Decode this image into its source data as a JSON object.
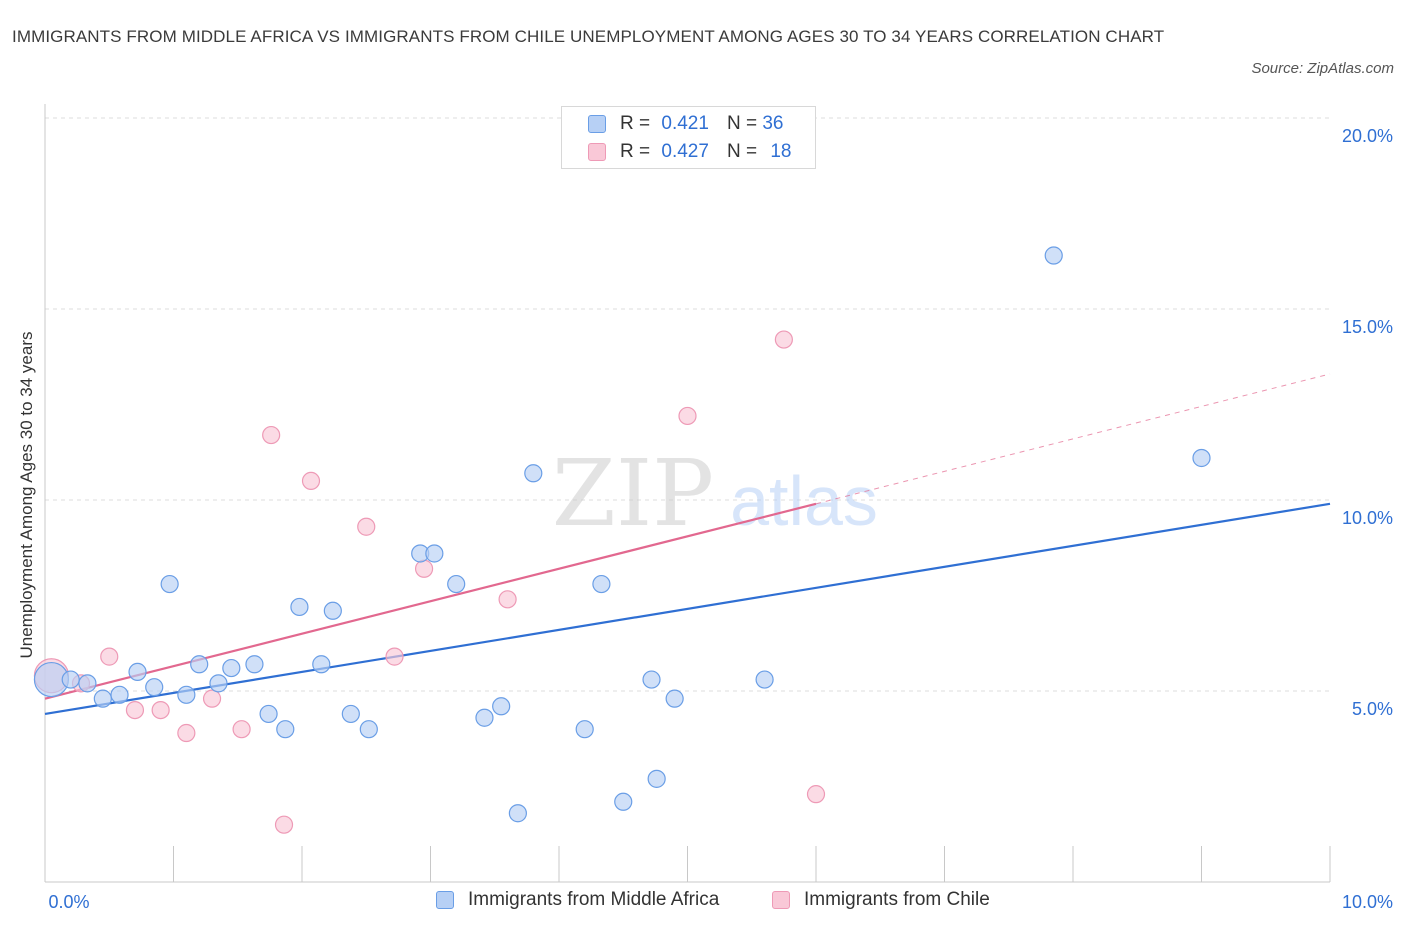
{
  "title": "IMMIGRANTS FROM MIDDLE AFRICA VS IMMIGRANTS FROM CHILE UNEMPLOYMENT AMONG AGES 30 TO 34 YEARS CORRELATION CHART",
  "source": "Source: ZipAtlas.com",
  "watermark": {
    "zip": "ZIP",
    "atlas": "atlas"
  },
  "legend": {
    "rows": [
      {
        "r_label": "R =",
        "r_value": "0.421",
        "n_label": "N =",
        "n_value": "36"
      },
      {
        "r_label": "R =",
        "r_value": "0.427",
        "n_label": "N =",
        "n_value": "18"
      }
    ]
  },
  "colors": {
    "blue_fill": "#b7d0f5",
    "blue_stroke": "#6a9ee6",
    "blue_line": "#2f6fd3",
    "pink_fill": "#f9c8d7",
    "pink_stroke": "#ee9ab6",
    "pink_line": "#e2688f",
    "axis_text": "#2f6fd3",
    "grid": "#dcdcdc"
  },
  "chart_data": {
    "type": "scatter",
    "title": "IMMIGRANTS FROM MIDDLE AFRICA VS IMMIGRANTS FROM CHILE UNEMPLOYMENT AMONG AGES 30 TO 34 YEARS CORRELATION CHART",
    "xlabel": "",
    "ylabel": "Unemployment Among Ages 30 to 34 years",
    "xlim": [
      0,
      10
    ],
    "ylim": [
      0,
      20
    ],
    "x_tick_labels": {
      "min": "0.0%",
      "max": "10.0%"
    },
    "y_ticks": [
      {
        "value": 5,
        "label": "5.0%"
      },
      {
        "value": 10,
        "label": "10.0%"
      },
      {
        "value": 15,
        "label": "15.0%"
      },
      {
        "value": 20,
        "label": "20.0%"
      }
    ],
    "series": [
      {
        "name": "Immigrants from Middle Africa",
        "r": 0.421,
        "n": 36,
        "trend": {
          "x0": 0,
          "y0": 4.4,
          "x1": 10,
          "y1": 9.9
        },
        "points": [
          {
            "x": 0.05,
            "y": 5.3,
            "big": true
          },
          {
            "x": 0.2,
            "y": 5.3
          },
          {
            "x": 0.33,
            "y": 5.2
          },
          {
            "x": 0.45,
            "y": 4.8
          },
          {
            "x": 0.58,
            "y": 4.9
          },
          {
            "x": 0.72,
            "y": 5.5
          },
          {
            "x": 0.85,
            "y": 5.1
          },
          {
            "x": 0.97,
            "y": 7.8
          },
          {
            "x": 1.1,
            "y": 4.9
          },
          {
            "x": 1.2,
            "y": 5.7
          },
          {
            "x": 1.35,
            "y": 5.2
          },
          {
            "x": 1.45,
            "y": 5.6
          },
          {
            "x": 1.63,
            "y": 5.7
          },
          {
            "x": 1.74,
            "y": 4.4
          },
          {
            "x": 1.87,
            "y": 4.0
          },
          {
            "x": 1.98,
            "y": 7.2
          },
          {
            "x": 2.15,
            "y": 5.7
          },
          {
            "x": 2.24,
            "y": 7.1
          },
          {
            "x": 2.38,
            "y": 4.4
          },
          {
            "x": 2.52,
            "y": 4.0
          },
          {
            "x": 2.92,
            "y": 8.6
          },
          {
            "x": 3.03,
            "y": 8.6
          },
          {
            "x": 3.2,
            "y": 7.8
          },
          {
            "x": 3.42,
            "y": 4.3
          },
          {
            "x": 3.55,
            "y": 4.6
          },
          {
            "x": 3.68,
            "y": 1.8
          },
          {
            "x": 3.8,
            "y": 10.7
          },
          {
            "x": 4.2,
            "y": 4.0
          },
          {
            "x": 4.33,
            "y": 7.8
          },
          {
            "x": 4.5,
            "y": 2.1
          },
          {
            "x": 4.72,
            "y": 5.3
          },
          {
            "x": 4.76,
            "y": 2.7
          },
          {
            "x": 4.9,
            "y": 4.8
          },
          {
            "x": 5.6,
            "y": 5.3
          },
          {
            "x": 7.85,
            "y": 16.4
          },
          {
            "x": 9.0,
            "y": 11.1
          }
        ]
      },
      {
        "name": "Immigrants from Chile",
        "r": 0.427,
        "n": 18,
        "trend": {
          "x0": 0,
          "y0": 4.8,
          "x1": 6.0,
          "y1": 9.9
        },
        "trend_dashed": {
          "x0": 6.0,
          "y0": 9.9,
          "x1": 10,
          "y1": 13.3
        },
        "points": [
          {
            "x": 0.05,
            "y": 5.4,
            "big": true
          },
          {
            "x": 0.28,
            "y": 5.2
          },
          {
            "x": 0.5,
            "y": 5.9
          },
          {
            "x": 0.7,
            "y": 4.5
          },
          {
            "x": 0.9,
            "y": 4.5
          },
          {
            "x": 1.1,
            "y": 3.9
          },
          {
            "x": 1.3,
            "y": 4.8
          },
          {
            "x": 1.53,
            "y": 4.0
          },
          {
            "x": 1.76,
            "y": 11.7
          },
          {
            "x": 1.86,
            "y": 1.5
          },
          {
            "x": 2.07,
            "y": 10.5
          },
          {
            "x": 2.5,
            "y": 9.3
          },
          {
            "x": 2.72,
            "y": 5.9
          },
          {
            "x": 2.95,
            "y": 8.2
          },
          {
            "x": 3.6,
            "y": 7.4
          },
          {
            "x": 5.0,
            "y": 12.2
          },
          {
            "x": 5.75,
            "y": 14.2
          },
          {
            "x": 6.0,
            "y": 2.3
          }
        ]
      }
    ]
  }
}
